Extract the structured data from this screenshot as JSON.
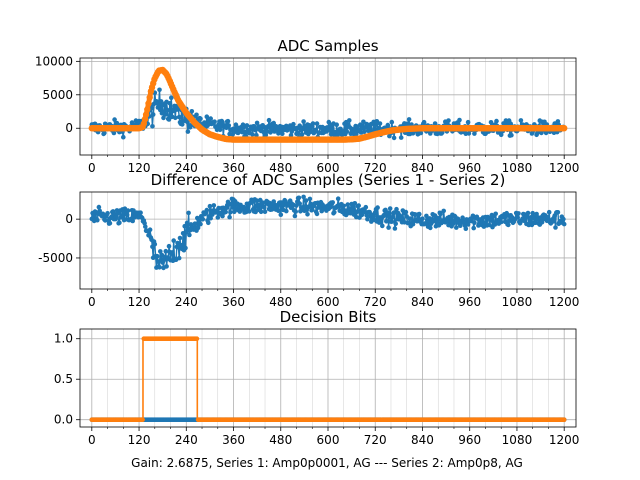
{
  "figure": {
    "caption": "Gain: 2.6875, Series 1: Amp0p0001, AG --- Series 2: Amp0p8, AG"
  },
  "colors": {
    "series1": "#1f77b4",
    "series2": "#ff7f0e",
    "grid": "#b0b0b0"
  },
  "chart_data": [
    {
      "type": "scatter",
      "title": "ADC Samples",
      "xlim": [
        -30,
        1230
      ],
      "ylim": [
        -4000,
        10500
      ],
      "xticks": [
        0,
        120,
        240,
        360,
        480,
        600,
        720,
        840,
        960,
        1080,
        1200
      ],
      "yticks": [
        0,
        5000,
        10000
      ],
      "grid": true,
      "series": [
        {
          "color": "#1f77b4",
          "style": "line-with-markers",
          "noise": 900,
          "x": [
            0,
            100,
            125,
            140,
            155,
            165,
            175,
            190,
            205,
            220,
            240,
            270,
            300,
            330,
            360,
            420,
            480,
            540,
            600,
            660,
            720,
            780,
            840,
            900,
            960,
            1020,
            1080,
            1140,
            1200
          ],
          "y": [
            0,
            100,
            400,
            1200,
            2500,
            3600,
            3800,
            3300,
            2700,
            2200,
            1500,
            900,
            500,
            200,
            0,
            -100,
            -150,
            -150,
            -150,
            -150,
            -100,
            -80,
            -50,
            0,
            0,
            0,
            0,
            0,
            0
          ]
        },
        {
          "color": "#ff7f0e",
          "style": "thick-line-with-markers",
          "noise": 0,
          "x": [
            0,
            120,
            130,
            140,
            150,
            160,
            170,
            180,
            190,
            200,
            210,
            220,
            240,
            260,
            280,
            300,
            320,
            340,
            360,
            400,
            450,
            500,
            550,
            600,
            640,
            660,
            680,
            700,
            720,
            740,
            760,
            780,
            800,
            840,
            900,
            960,
            1020,
            1080,
            1140,
            1200
          ],
          "y": [
            0,
            0,
            200,
            2500,
            5500,
            7500,
            8600,
            8700,
            8100,
            6800,
            5400,
            4100,
            2300,
            900,
            -200,
            -900,
            -1300,
            -1600,
            -1700,
            -1700,
            -1700,
            -1700,
            -1700,
            -1700,
            -1700,
            -1650,
            -1550,
            -1250,
            -900,
            -600,
            -350,
            -200,
            -100,
            0,
            0,
            0,
            0,
            0,
            0,
            0
          ]
        }
      ]
    },
    {
      "type": "scatter",
      "title": "Difference of ADC Samples (Series 1 - Series 2)",
      "xlim": [
        -30,
        1230
      ],
      "ylim": [
        -9000,
        3500
      ],
      "xticks": [
        0,
        120,
        240,
        360,
        480,
        600,
        720,
        840,
        960,
        1080,
        1200
      ],
      "yticks": [
        -5000,
        0
      ],
      "grid": true,
      "series": [
        {
          "color": "#1f77b4",
          "style": "line-with-markers",
          "noise": 900,
          "x": [
            0,
            100,
            120,
            130,
            140,
            150,
            160,
            170,
            180,
            190,
            200,
            210,
            220,
            240,
            260,
            280,
            300,
            330,
            360,
            400,
            450,
            500,
            550,
            600,
            640,
            670,
            700,
            720,
            760,
            800,
            840,
            900,
            960,
            1020,
            1080,
            1140,
            1200
          ],
          "y": [
            200,
            300,
            300,
            200,
            -1300,
            -3000,
            -4800,
            -6000,
            -5900,
            -5400,
            -4800,
            -4000,
            -3200,
            -2000,
            -900,
            0,
            700,
            1300,
            1600,
            1700,
            1700,
            1700,
            1600,
            1500,
            1400,
            1200,
            900,
            600,
            200,
            0,
            -100,
            -150,
            -150,
            -100,
            0,
            0,
            0
          ]
        }
      ]
    },
    {
      "type": "line",
      "title": "Decision Bits",
      "xlim": [
        -30,
        1230
      ],
      "ylim": [
        -0.09,
        1.12
      ],
      "xticks": [
        0,
        120,
        240,
        360,
        480,
        600,
        720,
        840,
        960,
        1080,
        1200
      ],
      "yticks": [
        0.0,
        0.5,
        1.0
      ],
      "ytick_labels": [
        "0.0",
        "0.5",
        "1.0"
      ],
      "grid": true,
      "series": [
        {
          "color": "#1f77b4",
          "style": "line-with-markers",
          "noise": 0,
          "x": [
            0,
            268,
            1200
          ],
          "y": [
            0,
            0,
            0
          ]
        },
        {
          "color": "#ff7f0e",
          "style": "step-with-markers",
          "noise": 0,
          "x": [
            0,
            130,
            130,
            268,
            268,
            1200
          ],
          "y": [
            0,
            0,
            1,
            1,
            0,
            0
          ]
        }
      ]
    }
  ]
}
